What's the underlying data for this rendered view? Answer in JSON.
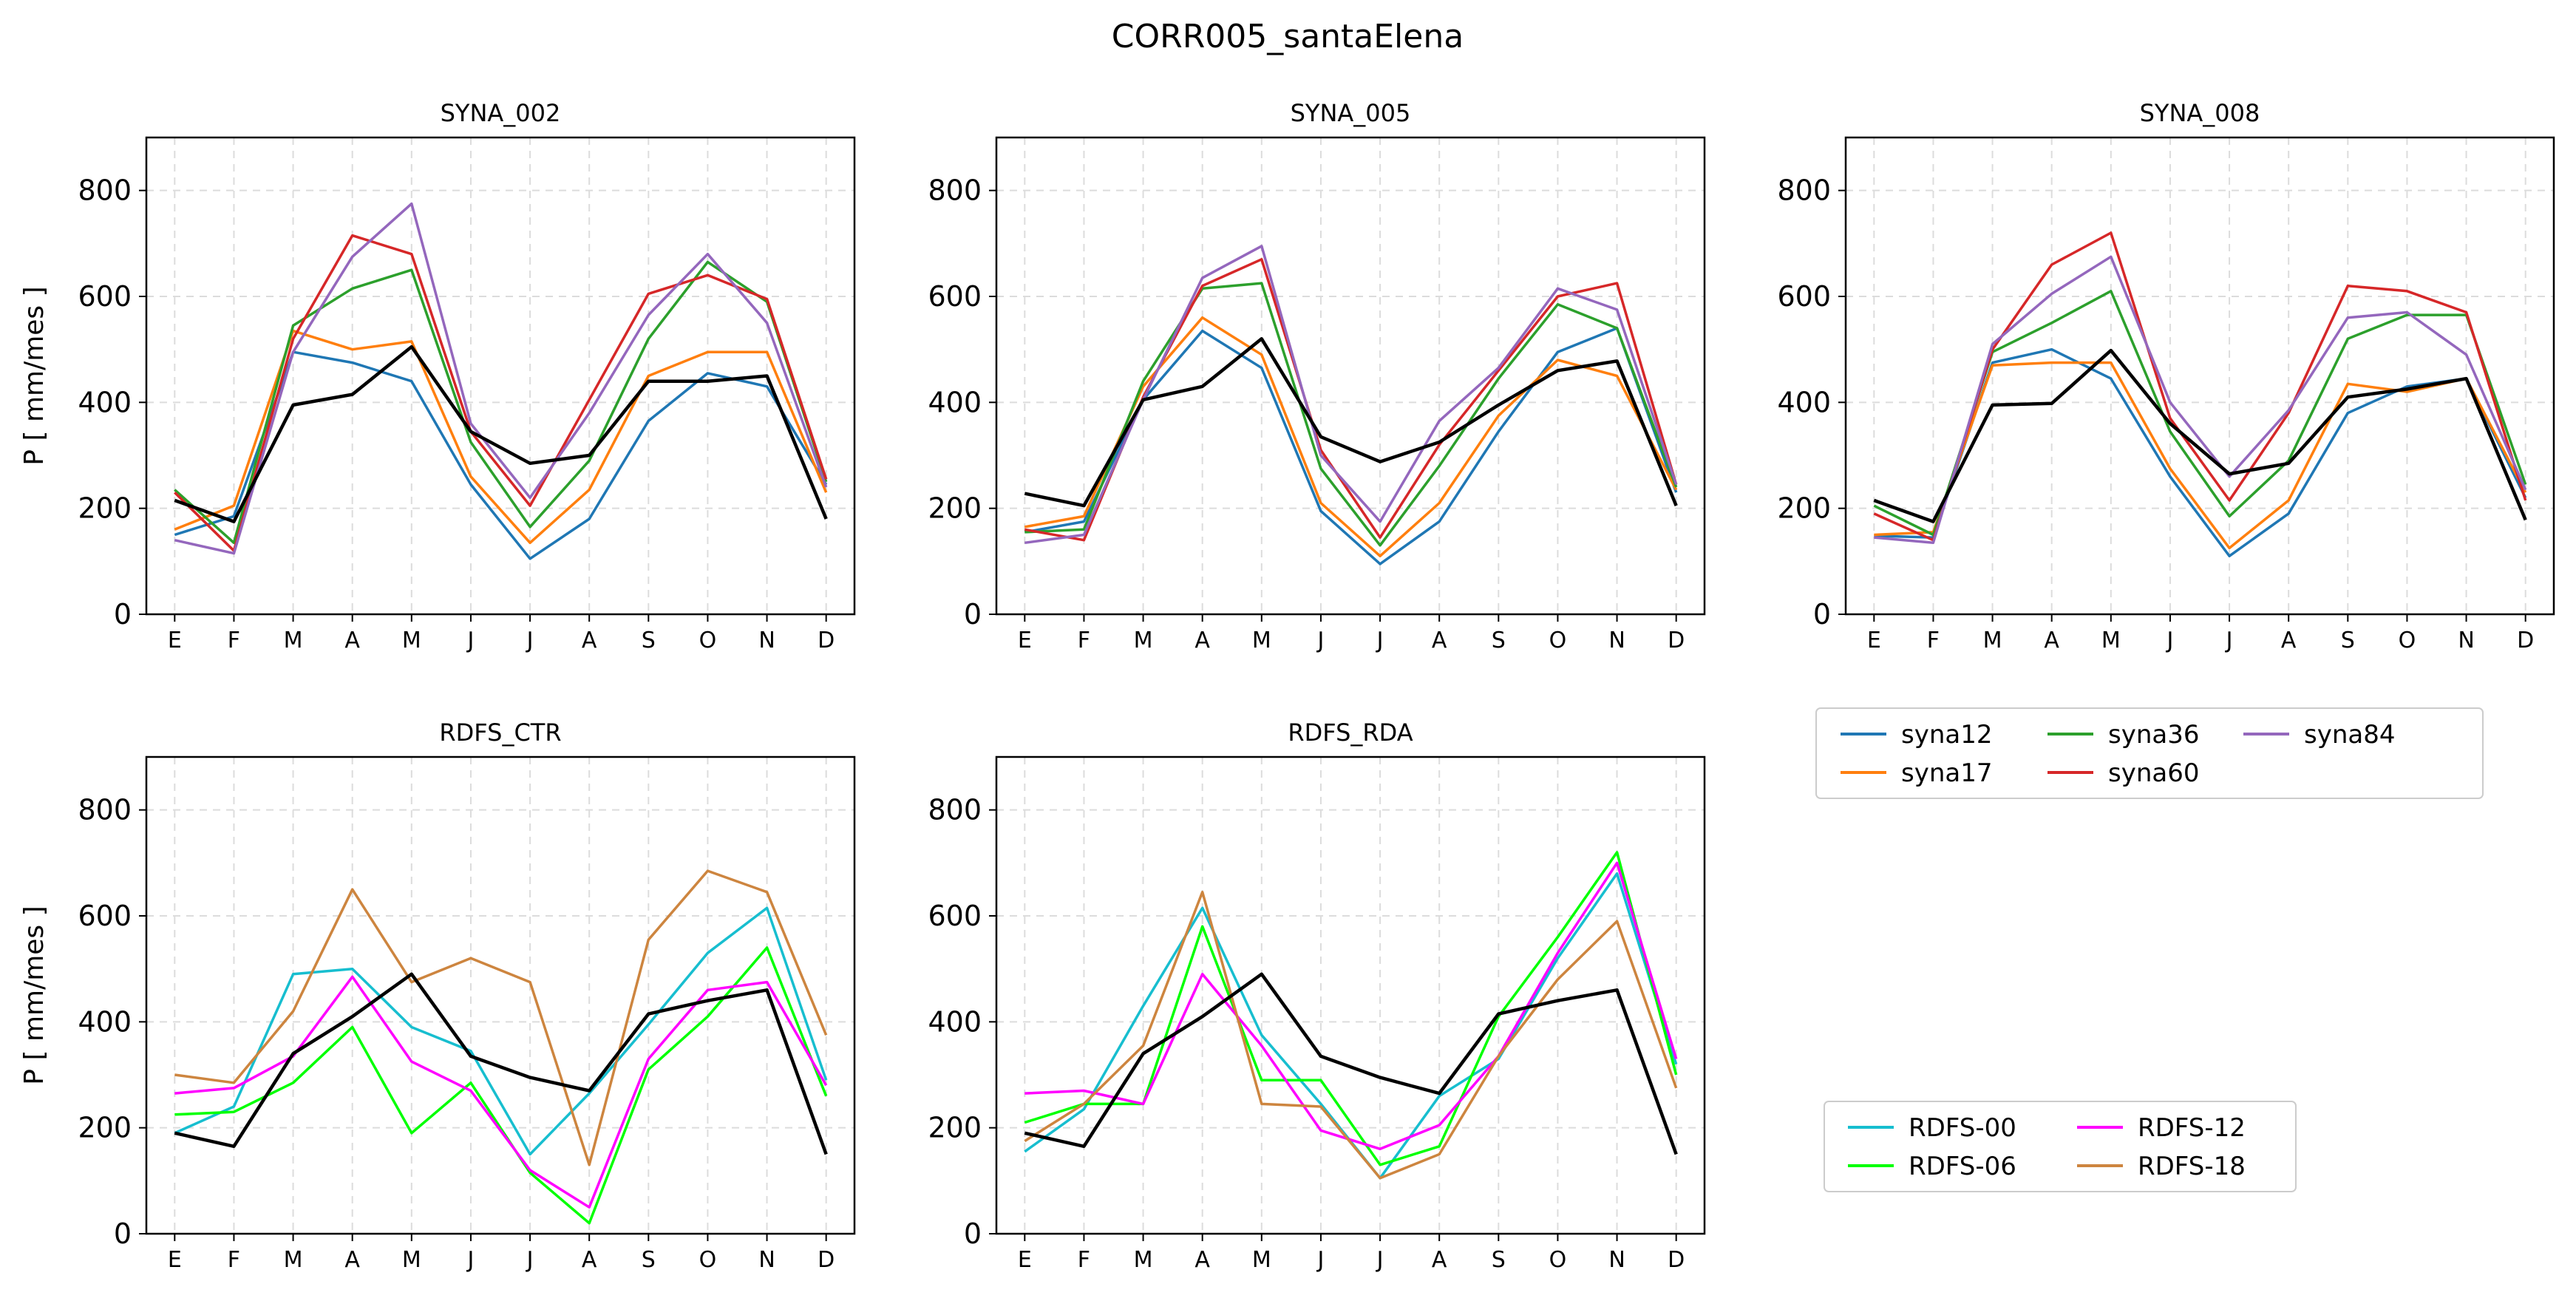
{
  "figure": {
    "suptitle": "CORR005_santaElena"
  },
  "legends": [
    {
      "entries": [
        {
          "label": "syna12",
          "color": "#1f77b4"
        },
        {
          "label": "syna36",
          "color": "#2ca02c"
        },
        {
          "label": "syna84",
          "color": "#9467bd"
        },
        {
          "label": "syna17",
          "color": "#ff7f0e"
        },
        {
          "label": "syna60",
          "color": "#d62728"
        }
      ]
    },
    {
      "entries": [
        {
          "label": "RDFS-00",
          "color": "#17becf"
        },
        {
          "label": "RDFS-12",
          "color": "#ff00ff"
        },
        {
          "label": "RDFS-06",
          "color": "#00ff00"
        },
        {
          "label": "RDFS-18",
          "color": "#cd853f"
        }
      ]
    }
  ],
  "chart_data": [
    {
      "type": "line",
      "title": "SYNA_002",
      "ylabel": "P [ mm/mes ]",
      "categories": [
        "E",
        "F",
        "M",
        "A",
        "M",
        "J",
        "J",
        "A",
        "S",
        "O",
        "N",
        "D"
      ],
      "ylim": [
        0,
        900
      ],
      "yticks": [
        0,
        200,
        400,
        600,
        800
      ],
      "grid": true,
      "series": [
        {
          "name": "syna12",
          "color": "#1f77b4",
          "values": [
            150,
            185,
            495,
            475,
            440,
            245,
            105,
            180,
            365,
            455,
            430,
            245
          ]
        },
        {
          "name": "syna17",
          "color": "#ff7f0e",
          "values": [
            160,
            205,
            535,
            500,
            515,
            260,
            135,
            235,
            450,
            495,
            495,
            230
          ]
        },
        {
          "name": "syna36",
          "color": "#2ca02c",
          "values": [
            235,
            135,
            545,
            615,
            650,
            325,
            165,
            290,
            520,
            665,
            590,
            250
          ]
        },
        {
          "name": "syna60",
          "color": "#d62728",
          "values": [
            230,
            120,
            520,
            715,
            680,
            345,
            205,
            405,
            605,
            640,
            595,
            255
          ]
        },
        {
          "name": "syna84",
          "color": "#9467bd",
          "values": [
            140,
            115,
            495,
            675,
            775,
            360,
            220,
            380,
            565,
            680,
            550,
            240
          ]
        },
        {
          "color": "#000000",
          "values": [
            215,
            175,
            395,
            415,
            505,
            345,
            285,
            300,
            440,
            440,
            450,
            180
          ]
        }
      ]
    },
    {
      "type": "line",
      "title": "SYNA_005",
      "ylabel": "",
      "categories": [
        "E",
        "F",
        "M",
        "A",
        "M",
        "J",
        "J",
        "A",
        "S",
        "O",
        "N",
        "D"
      ],
      "ylim": [
        0,
        900
      ],
      "yticks": [
        0,
        200,
        400,
        600,
        800
      ],
      "grid": true,
      "series": [
        {
          "name": "syna12",
          "color": "#1f77b4",
          "values": [
            155,
            175,
            405,
            535,
            465,
            195,
            95,
            175,
            345,
            495,
            540,
            230
          ]
        },
        {
          "name": "syna17",
          "color": "#ff7f0e",
          "values": [
            165,
            185,
            430,
            560,
            490,
            210,
            110,
            210,
            375,
            480,
            450,
            235
          ]
        },
        {
          "name": "syna36",
          "color": "#2ca02c",
          "values": [
            155,
            160,
            440,
            615,
            625,
            275,
            130,
            280,
            445,
            585,
            540,
            240
          ]
        },
        {
          "name": "syna60",
          "color": "#d62728",
          "values": [
            160,
            140,
            410,
            620,
            670,
            310,
            145,
            320,
            460,
            600,
            625,
            245
          ]
        },
        {
          "name": "syna84",
          "color": "#9467bd",
          "values": [
            135,
            150,
            405,
            635,
            695,
            300,
            175,
            365,
            465,
            615,
            575,
            245
          ]
        },
        {
          "color": "#000000",
          "values": [
            228,
            205,
            405,
            430,
            520,
            335,
            288,
            325,
            395,
            460,
            478,
            205
          ]
        }
      ]
    },
    {
      "type": "line",
      "title": "SYNA_008",
      "ylabel": "",
      "categories": [
        "E",
        "F",
        "M",
        "A",
        "M",
        "J",
        "J",
        "A",
        "S",
        "O",
        "N",
        "D"
      ],
      "ylim": [
        0,
        900
      ],
      "yticks": [
        0,
        200,
        400,
        600,
        800
      ],
      "grid": true,
      "series": [
        {
          "name": "syna12",
          "color": "#1f77b4",
          "values": [
            148,
            145,
            475,
            500,
            445,
            260,
            110,
            190,
            380,
            430,
            445,
            220
          ]
        },
        {
          "name": "syna17",
          "color": "#ff7f0e",
          "values": [
            150,
            155,
            470,
            475,
            475,
            275,
            125,
            215,
            435,
            420,
            445,
            230
          ]
        },
        {
          "name": "syna36",
          "color": "#2ca02c",
          "values": [
            205,
            150,
            495,
            550,
            610,
            345,
            185,
            290,
            520,
            565,
            565,
            245
          ]
        },
        {
          "name": "syna60",
          "color": "#d62728",
          "values": [
            190,
            140,
            500,
            660,
            720,
            370,
            215,
            380,
            620,
            610,
            570,
            215
          ]
        },
        {
          "name": "syna84",
          "color": "#9467bd",
          "values": [
            145,
            135,
            510,
            605,
            675,
            400,
            260,
            385,
            560,
            570,
            490,
            235
          ]
        },
        {
          "color": "#000000",
          "values": [
            215,
            175,
            395,
            398,
            498,
            360,
            265,
            285,
            410,
            425,
            445,
            178
          ]
        }
      ]
    },
    {
      "type": "line",
      "title": "RDFS_CTR",
      "ylabel": "P [ mm/mes ]",
      "categories": [
        "E",
        "F",
        "M",
        "A",
        "M",
        "J",
        "J",
        "A",
        "S",
        "O",
        "N",
        "D"
      ],
      "ylim": [
        0,
        900
      ],
      "yticks": [
        0,
        200,
        400,
        600,
        800
      ],
      "grid": true,
      "series": [
        {
          "name": "RDFS-00",
          "color": "#17becf",
          "values": [
            190,
            240,
            490,
            500,
            390,
            345,
            150,
            265,
            395,
            530,
            615,
            290
          ]
        },
        {
          "name": "RDFS-06",
          "color": "#00ff00",
          "values": [
            225,
            230,
            285,
            390,
            190,
            285,
            115,
            20,
            310,
            410,
            540,
            260
          ]
        },
        {
          "name": "RDFS-12",
          "color": "#ff00ff",
          "values": [
            265,
            275,
            335,
            485,
            325,
            270,
            120,
            50,
            330,
            460,
            475,
            280
          ]
        },
        {
          "name": "RDFS-18",
          "color": "#cd853f",
          "values": [
            300,
            285,
            420,
            650,
            475,
            520,
            475,
            130,
            555,
            685,
            645,
            375
          ]
        },
        {
          "color": "#000000",
          "values": [
            190,
            165,
            340,
            410,
            490,
            335,
            295,
            270,
            415,
            440,
            460,
            150
          ]
        }
      ]
    },
    {
      "type": "line",
      "title": "RDFS_RDA",
      "ylabel": "",
      "categories": [
        "E",
        "F",
        "M",
        "A",
        "M",
        "J",
        "J",
        "A",
        "S",
        "O",
        "N",
        "D"
      ],
      "ylim": [
        0,
        900
      ],
      "yticks": [
        0,
        200,
        400,
        600,
        800
      ],
      "grid": true,
      "series": [
        {
          "name": "RDFS-00",
          "color": "#17becf",
          "values": [
            155,
            235,
            430,
            615,
            375,
            245,
            105,
            260,
            330,
            520,
            680,
            320
          ]
        },
        {
          "name": "RDFS-06",
          "color": "#00ff00",
          "values": [
            210,
            245,
            245,
            580,
            290,
            290,
            130,
            165,
            410,
            560,
            720,
            300
          ]
        },
        {
          "name": "RDFS-12",
          "color": "#ff00ff",
          "values": [
            265,
            270,
            245,
            490,
            355,
            195,
            160,
            205,
            335,
            530,
            700,
            330
          ]
        },
        {
          "name": "RDFS-18",
          "color": "#cd853f",
          "values": [
            175,
            245,
            355,
            645,
            245,
            240,
            105,
            150,
            335,
            480,
            590,
            275
          ]
        },
        {
          "color": "#000000",
          "values": [
            190,
            165,
            340,
            410,
            490,
            335,
            295,
            265,
            415,
            440,
            460,
            150
          ]
        }
      ]
    }
  ]
}
